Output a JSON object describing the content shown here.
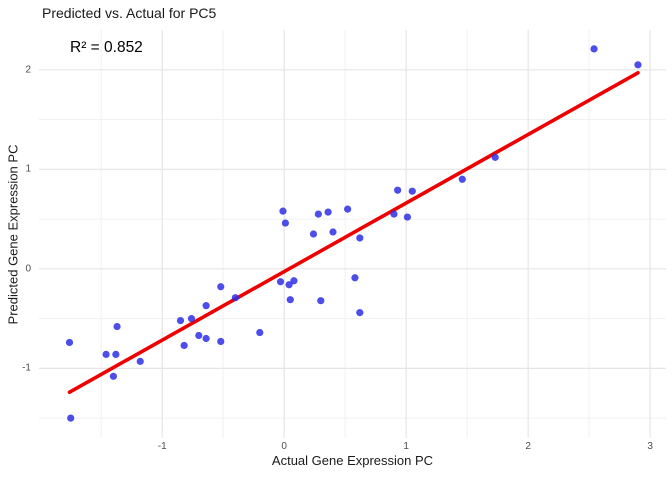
{
  "chart_data": {
    "type": "scatter",
    "title": "Predicted vs. Actual for PC5",
    "annotation": "R² = 0.852",
    "xlabel": "Actual Gene Expression PC",
    "ylabel": "Predicted Gene Expression PC",
    "xlim": [
      -2.01,
      3.13
    ],
    "ylim": [
      -1.7,
      2.4
    ],
    "x_major_ticks": [
      -1,
      0,
      1,
      2,
      3
    ],
    "y_major_ticks": [
      -1,
      0,
      1,
      2
    ],
    "x_minor_ticks": [
      -1.5,
      -0.5,
      0.5,
      1.5,
      2.5
    ],
    "y_minor_ticks": [
      -1.5,
      -0.5,
      0.5,
      1.5
    ],
    "grid": true,
    "legend": false,
    "point_color": "#2E2EE6",
    "point_opacity": 0.85,
    "line_color": "#EE0000",
    "major_grid_color": "#E5E5E5",
    "minor_grid_color": "#F1F1F1",
    "regression_line": {
      "x1": -1.76,
      "y1": -1.24,
      "x2": 2.9,
      "y2": 1.97
    },
    "points": [
      [
        -1.76,
        -0.74
      ],
      [
        -1.75,
        -1.5
      ],
      [
        -1.46,
        -0.86
      ],
      [
        -1.38,
        -0.86
      ],
      [
        -1.37,
        -0.58
      ],
      [
        -1.4,
        -1.08
      ],
      [
        -1.18,
        -0.93
      ],
      [
        -0.85,
        -0.52
      ],
      [
        -0.82,
        -0.77
      ],
      [
        -0.76,
        -0.5
      ],
      [
        -0.7,
        -0.67
      ],
      [
        -0.64,
        -0.7
      ],
      [
        -0.64,
        -0.37
      ],
      [
        -0.52,
        -0.18
      ],
      [
        -0.52,
        -0.73
      ],
      [
        -0.4,
        -0.29
      ],
      [
        -0.2,
        -0.64
      ],
      [
        -0.03,
        -0.13
      ],
      [
        0.04,
        -0.16
      ],
      [
        0.08,
        -0.12
      ],
      [
        0.05,
        -0.31
      ],
      [
        0.3,
        -0.32
      ],
      [
        0.58,
        -0.09
      ],
      [
        0.62,
        -0.44
      ],
      [
        -0.01,
        0.58
      ],
      [
        0.01,
        0.46
      ],
      [
        0.28,
        0.55
      ],
      [
        0.36,
        0.57
      ],
      [
        0.52,
        0.6
      ],
      [
        0.24,
        0.35
      ],
      [
        0.4,
        0.37
      ],
      [
        0.62,
        0.31
      ],
      [
        0.93,
        0.79
      ],
      [
        1.05,
        0.78
      ],
      [
        0.9,
        0.55
      ],
      [
        1.01,
        0.52
      ],
      [
        1.46,
        0.9
      ],
      [
        1.73,
        1.12
      ],
      [
        2.54,
        2.21
      ],
      [
        2.9,
        2.05
      ]
    ]
  }
}
